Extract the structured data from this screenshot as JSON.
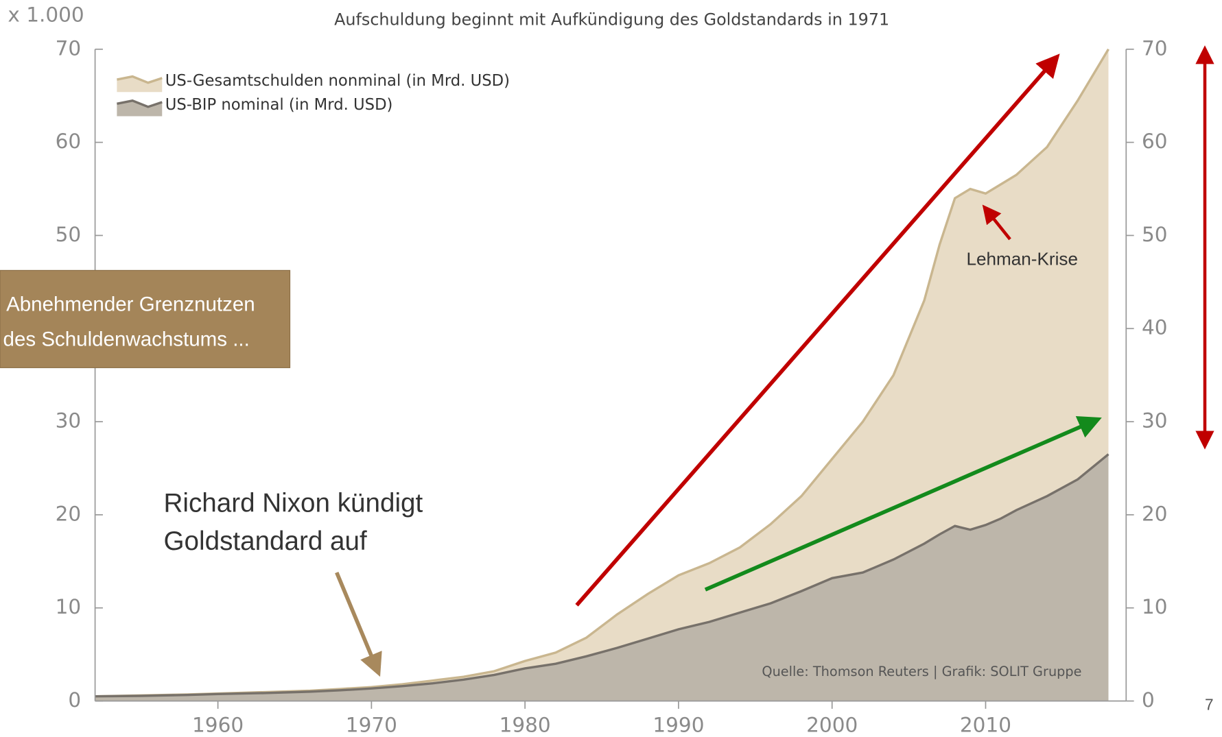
{
  "chart_data": {
    "type": "area",
    "title": "Aufschuldung beginnt mit Aufkündigung des Goldstandards in 1971",
    "y_unit_label": "x 1.000",
    "x": [
      1952,
      1955,
      1958,
      1960,
      1963,
      1966,
      1968,
      1970,
      1972,
      1974,
      1976,
      1978,
      1980,
      1982,
      1984,
      1986,
      1988,
      1990,
      1992,
      1994,
      1996,
      1998,
      2000,
      2002,
      2004,
      2006,
      2007,
      2008,
      2009,
      2010,
      2011,
      2012,
      2014,
      2016,
      2018
    ],
    "series": [
      {
        "name": "US-Gesamtschulden nonminal (in Mrd. USD)",
        "color": "#e8dcc6",
        "line_color": "#c9b68f",
        "values": [
          0.5,
          0.6,
          0.7,
          0.8,
          0.95,
          1.1,
          1.3,
          1.5,
          1.8,
          2.2,
          2.6,
          3.2,
          4.3,
          5.2,
          6.8,
          9.3,
          11.5,
          13.5,
          14.8,
          16.5,
          19,
          22,
          26,
          30,
          35,
          43,
          49,
          54,
          55,
          54.5,
          55.5,
          56.5,
          59.5,
          64.5,
          70
        ]
      },
      {
        "name": "US-BIP nominal (in Mrd. USD)",
        "color": "#bdb6aa",
        "line_color": "#77716a",
        "values": [
          0.5,
          0.55,
          0.65,
          0.75,
          0.85,
          1.0,
          1.15,
          1.35,
          1.6,
          1.9,
          2.3,
          2.8,
          3.5,
          4.0,
          4.8,
          5.7,
          6.7,
          7.7,
          8.5,
          9.5,
          10.5,
          11.8,
          13.2,
          13.8,
          15.2,
          16.9,
          17.9,
          18.8,
          18.4,
          18.9,
          19.6,
          20.5,
          22,
          23.8,
          26.5
        ]
      }
    ],
    "xlim": [
      1952,
      2019
    ],
    "xticks": [
      1960,
      1970,
      1980,
      1990,
      2000,
      2010
    ],
    "ylim": [
      0,
      70
    ],
    "yticks": [
      0,
      10,
      20,
      30,
      40,
      50,
      60,
      70
    ],
    "y2lim": [
      0,
      70
    ],
    "y2ticks": [
      0,
      10,
      20,
      30,
      40,
      50,
      60,
      70
    ],
    "legend": "upper left",
    "annotations": {
      "nixon": [
        "Richard Nixon kündigt",
        "Goldstandard auf"
      ],
      "lehman": "Lehman-Krise",
      "box": [
        "Abnehmender Grenznutzen",
        "des Schuldenwachstums ..."
      ],
      "source": "Quelle: Thomson Reuters | Grafik: SOLIT Gruppe"
    },
    "page_number": "7"
  }
}
